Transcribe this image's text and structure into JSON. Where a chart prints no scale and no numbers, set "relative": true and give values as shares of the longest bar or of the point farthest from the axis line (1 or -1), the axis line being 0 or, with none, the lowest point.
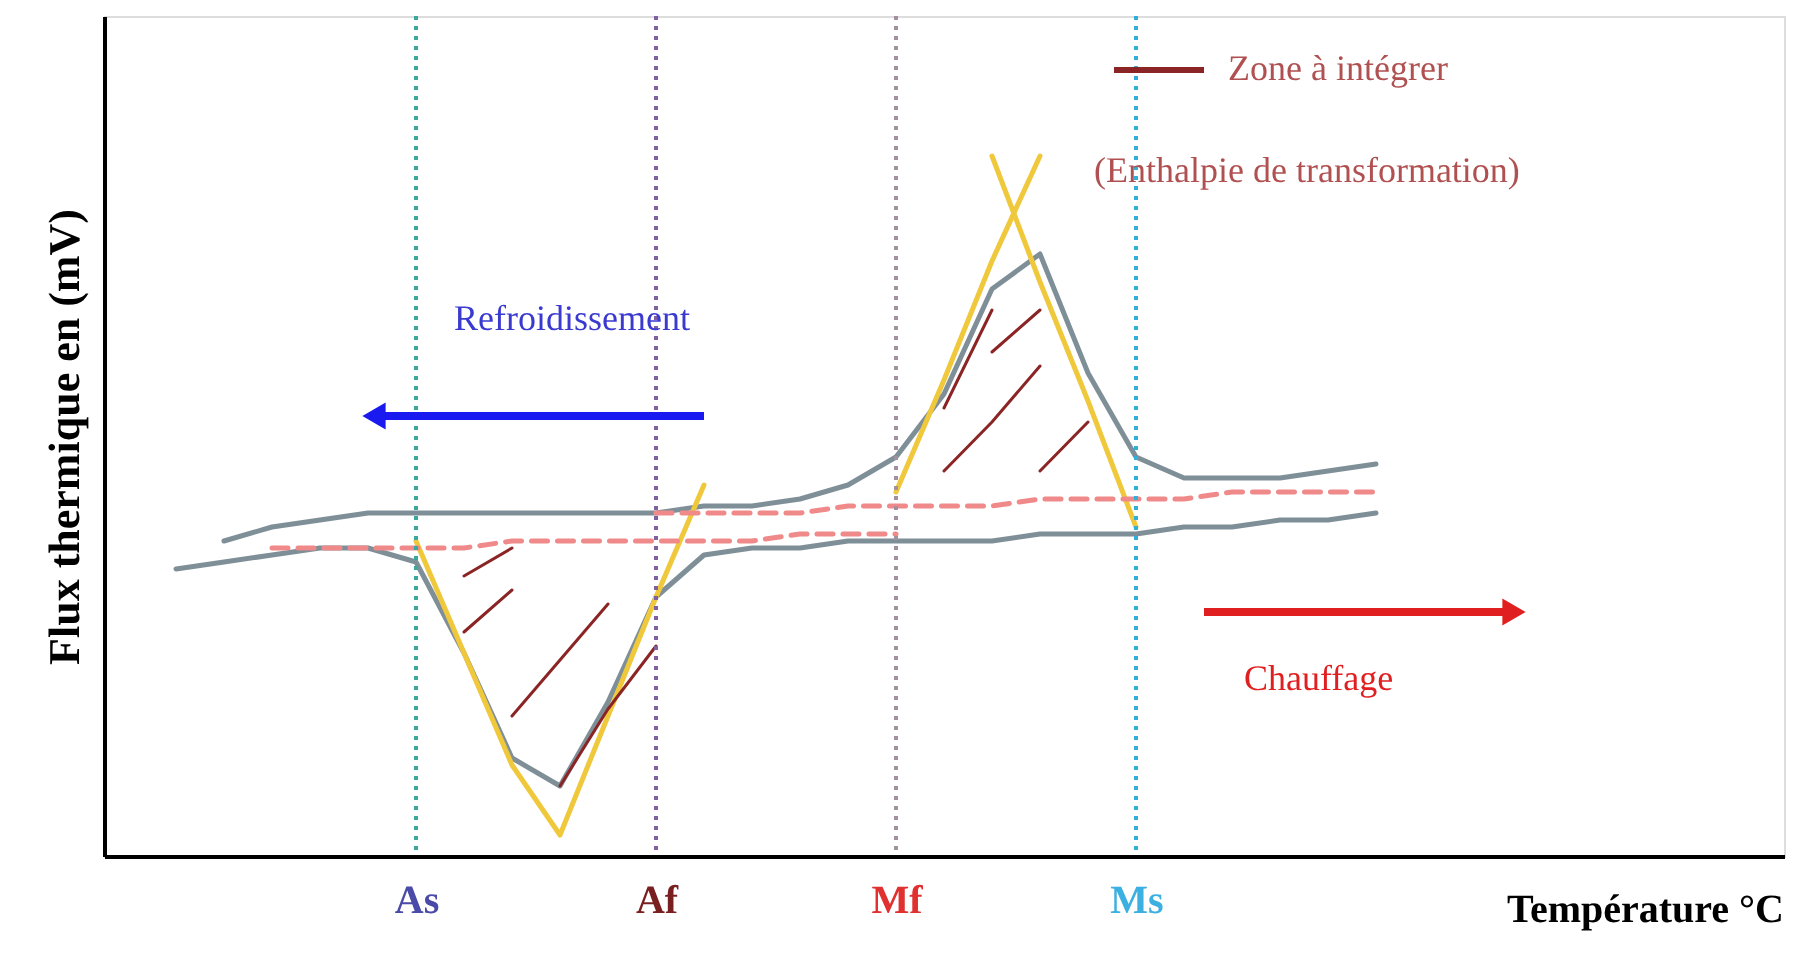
{
  "chart_data": {
    "type": "line",
    "relative": true,
    "xlabel": "Température °C",
    "ylabel": "Flux thermique en (mV)",
    "categories": [
      null,
      null,
      null,
      null,
      null,
      null,
      "As",
      null,
      null,
      null,
      null,
      "Af",
      null,
      null,
      null,
      null,
      "Mf",
      null,
      null,
      null,
      null,
      "Ms",
      null,
      null,
      null,
      null,
      null,
      null,
      null,
      null,
      null,
      null,
      null,
      null,
      null
    ],
    "tick_labels": "x",
    "legend": "top right",
    "annotations": [
      "Refroidissement",
      "Chauffage",
      "(Enthalpie de transformation)"
    ],
    "ref_lines": [
      {
        "axis": "x",
        "value": "As",
        "color": "#3aa89a",
        "line_style": "dotted"
      },
      {
        "axis": "x",
        "value": "Af",
        "color": "#8060a0",
        "line_style": "dotted"
      },
      {
        "axis": "x",
        "value": "Mf",
        "color": "#a090a0",
        "line_style": "dotted"
      },
      {
        "axis": "x",
        "value": "Ms",
        "color": "#30b0d8",
        "line_style": "dotted"
      }
    ],
    "series": [
      {
        "color": "#7f8f98",
        "values": [
          null,
          null,
          0.45,
          0.47,
          0.48,
          0.49,
          0.49,
          0.49,
          0.49,
          0.49,
          0.49,
          0.49,
          0.5,
          0.5,
          0.51,
          0.53,
          0.57,
          0.66,
          0.81,
          0.86,
          0.69,
          0.57,
          0.54,
          0.54,
          0.54,
          0.55,
          0.56,
          null,
          null,
          null,
          null,
          null,
          null,
          null,
          null
        ]
      },
      {
        "color": "#7f8f98",
        "values": [
          null,
          0.41,
          0.42,
          0.43,
          0.44,
          0.44,
          0.42,
          0.29,
          0.14,
          0.1,
          0.22,
          0.37,
          0.43,
          0.44,
          0.44,
          0.45,
          0.45,
          0.45,
          0.45,
          0.46,
          0.46,
          0.46,
          0.47,
          0.47,
          0.48,
          0.48,
          0.49,
          null,
          null,
          null,
          null,
          null,
          null,
          null,
          null
        ]
      },
      {
        "color": "#f0c83c",
        "values": [
          null,
          null,
          null,
          null,
          null,
          null,
          0.45,
          0.29,
          0.13,
          0.03,
          0.2,
          0.37,
          0.53,
          null,
          null,
          null,
          null,
          null,
          null,
          null,
          null,
          null,
          null,
          null,
          null,
          null,
          null,
          null,
          null,
          null,
          null,
          null,
          null,
          null,
          null
        ]
      },
      {
        "color": "#f0c83c",
        "values": [
          null,
          null,
          null,
          null,
          null,
          null,
          null,
          null,
          null,
          null,
          null,
          null,
          null,
          null,
          null,
          null,
          0.52,
          0.68,
          0.85,
          1.0,
          null,
          null,
          null,
          null,
          null,
          null,
          null,
          null,
          null,
          null,
          null,
          null,
          null,
          null,
          null
        ]
      },
      {
        "color": "#f0c83c",
        "values": [
          null,
          null,
          null,
          null,
          null,
          null,
          null,
          null,
          null,
          null,
          null,
          null,
          null,
          null,
          null,
          null,
          null,
          null,
          1.0,
          0.82,
          0.65,
          0.47,
          null,
          null,
          null,
          null,
          null,
          null,
          null,
          null,
          null,
          null,
          null,
          null,
          null
        ]
      },
      {
        "color": "#f08a8a",
        "line_style": "dashed",
        "values": [
          null,
          null,
          null,
          0.44,
          0.44,
          0.44,
          0.44,
          0.44,
          0.45,
          0.45,
          0.45,
          0.45,
          0.45,
          0.45,
          0.46,
          0.46,
          0.46,
          null,
          null,
          null,
          null,
          null,
          null,
          null,
          null,
          null,
          null,
          null,
          null,
          null,
          null,
          null,
          null,
          null,
          null
        ]
      },
      {
        "color": "#f08a8a",
        "line_style": "dashed",
        "values": [
          null,
          null,
          null,
          null,
          null,
          null,
          null,
          null,
          null,
          null,
          null,
          0.49,
          0.49,
          0.49,
          0.49,
          0.5,
          0.5,
          0.5,
          0.5,
          0.51,
          0.51,
          0.51,
          0.51,
          0.52,
          0.52,
          0.52,
          0.52,
          null,
          null,
          null,
          null,
          null,
          null,
          null,
          null
        ]
      },
      {
        "name": "Zone à intégrer",
        "color": "#8b2525",
        "values": [
          null,
          null,
          null,
          null,
          null,
          null,
          null,
          0.32,
          0.38,
          null,
          null,
          null,
          null,
          null,
          null,
          null,
          null,
          0.55,
          0.62,
          0.7,
          null,
          null,
          null,
          null,
          null,
          null,
          null,
          null,
          null,
          null,
          null,
          null,
          null,
          null,
          null
        ]
      },
      {
        "color": "#8b2525",
        "values": [
          null,
          null,
          null,
          null,
          null,
          null,
          null,
          null,
          0.2,
          0.28,
          0.36,
          null,
          null,
          null,
          null,
          null,
          null,
          null,
          null,
          0.55,
          0.62,
          null,
          null,
          null,
          null,
          null,
          null,
          null,
          null,
          null,
          null,
          null,
          null,
          null,
          null
        ]
      },
      {
        "color": "#8b2525",
        "values": [
          null,
          null,
          null,
          null,
          null,
          null,
          null,
          null,
          null,
          0.1,
          0.21,
          0.3,
          null,
          null,
          null,
          null,
          null,
          null,
          0.72,
          0.78,
          null,
          null,
          null,
          null,
          null,
          null,
          null,
          null,
          null,
          null,
          null,
          null,
          null,
          null,
          null
        ]
      },
      {
        "color": "#8b2525",
        "values": [
          null,
          null,
          null,
          null,
          null,
          null,
          null,
          0.4,
          0.44,
          null,
          null,
          null,
          null,
          null,
          null,
          null,
          null,
          0.64,
          0.78,
          null,
          null,
          null,
          null,
          null,
          null,
          null,
          null,
          null,
          null,
          null,
          null,
          null,
          null,
          null,
          null
        ]
      }
    ]
  }
}
